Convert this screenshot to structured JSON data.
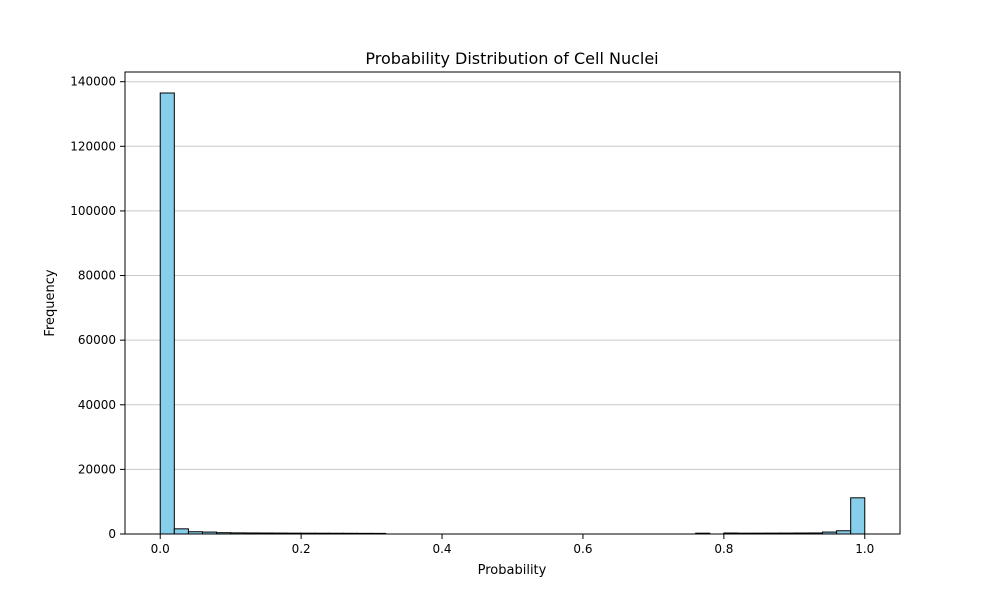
{
  "chart_data": {
    "type": "bar",
    "title": "Probability Distribution of Cell Nuclei",
    "xlabel": "Probability",
    "ylabel": "Frequency",
    "xlim": [
      -0.05,
      1.05
    ],
    "ylim": [
      0,
      143000
    ],
    "xticks": [
      0.0,
      0.2,
      0.4,
      0.6,
      0.8,
      1.0
    ],
    "xtick_labels": [
      "0.0",
      "0.2",
      "0.4",
      "0.6",
      "0.8",
      "1.0"
    ],
    "yticks": [
      0,
      20000,
      40000,
      60000,
      80000,
      100000,
      120000,
      140000
    ],
    "ytick_labels": [
      "0",
      "20000",
      "40000",
      "60000",
      "80000",
      "100000",
      "120000",
      "140000"
    ],
    "grid": "horizontal",
    "bin_width": 0.02,
    "bin_edges_start": 0.0,
    "values": [
      136500,
      1600,
      700,
      600,
      400,
      350,
      320,
      300,
      280,
      260,
      250,
      240,
      230,
      220,
      200,
      190,
      0,
      0,
      0,
      0,
      0,
      0,
      0,
      0,
      0,
      0,
      0,
      0,
      0,
      0,
      0,
      0,
      0,
      0,
      0,
      0,
      0,
      0,
      250,
      0,
      300,
      250,
      260,
      270,
      280,
      300,
      320,
      600,
      1000,
      11200
    ],
    "bar_color": "#87ceeb",
    "edge_color": "#000000",
    "grid_color": "#c8c8c8"
  }
}
